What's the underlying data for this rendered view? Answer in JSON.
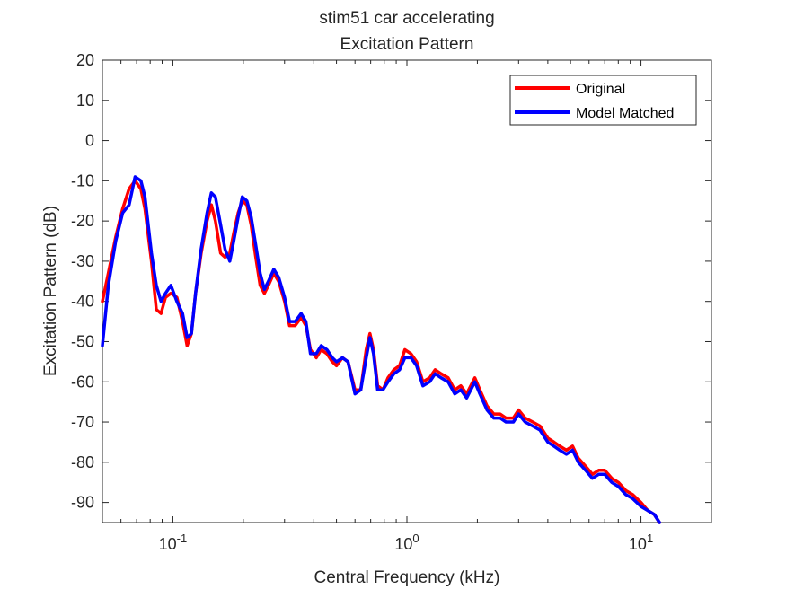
{
  "chart_data": {
    "type": "line",
    "title": "stim51 car accelerating",
    "subtitle": "Excitation Pattern",
    "xlabel": "Central Frequency (kHz)",
    "ylabel": "Excitation Pattern (dB)",
    "xscale": "log",
    "xlim": [
      0.05,
      20
    ],
    "ylim": [
      -95,
      20
    ],
    "yticks": [
      20,
      10,
      0,
      -10,
      -20,
      -30,
      -40,
      -50,
      -60,
      -70,
      -80,
      -90
    ],
    "ytick_labels": [
      "20",
      "10",
      "0",
      "-10",
      "-20",
      "-30",
      "-40",
      "-50",
      "-60",
      "-70",
      "-80",
      "-90"
    ],
    "xticks": [
      {
        "value": 0.1,
        "base": "10",
        "exp": "-1"
      },
      {
        "value": 1,
        "base": "10",
        "exp": "0"
      },
      {
        "value": 10,
        "base": "10",
        "exp": "1"
      }
    ],
    "grid": false,
    "legend_position": "top-right",
    "series": [
      {
        "name": "Original",
        "color": "#ff0000",
        "points": [
          [
            0.05,
            -40
          ],
          [
            0.053,
            -33
          ],
          [
            0.057,
            -24
          ],
          [
            0.061,
            -17
          ],
          [
            0.065,
            -12
          ],
          [
            0.069,
            -10
          ],
          [
            0.073,
            -12
          ],
          [
            0.076,
            -17
          ],
          [
            0.081,
            -30
          ],
          [
            0.085,
            -42
          ],
          [
            0.089,
            -43
          ],
          [
            0.093,
            -39
          ],
          [
            0.098,
            -38
          ],
          [
            0.104,
            -39
          ],
          [
            0.11,
            -45
          ],
          [
            0.115,
            -51
          ],
          [
            0.12,
            -48
          ],
          [
            0.125,
            -38
          ],
          [
            0.132,
            -28
          ],
          [
            0.14,
            -20
          ],
          [
            0.146,
            -16
          ],
          [
            0.152,
            -20
          ],
          [
            0.16,
            -28
          ],
          [
            0.167,
            -29
          ],
          [
            0.175,
            -28
          ],
          [
            0.182,
            -23
          ],
          [
            0.19,
            -18
          ],
          [
            0.198,
            -15
          ],
          [
            0.207,
            -16
          ],
          [
            0.216,
            -21
          ],
          [
            0.226,
            -29
          ],
          [
            0.236,
            -36
          ],
          [
            0.246,
            -38
          ],
          [
            0.256,
            -36
          ],
          [
            0.27,
            -33
          ],
          [
            0.283,
            -35
          ],
          [
            0.3,
            -40
          ],
          [
            0.315,
            -46
          ],
          [
            0.333,
            -46
          ],
          [
            0.353,
            -44
          ],
          [
            0.37,
            -46
          ],
          [
            0.387,
            -52
          ],
          [
            0.41,
            -54
          ],
          [
            0.43,
            -52
          ],
          [
            0.455,
            -53
          ],
          [
            0.48,
            -55
          ],
          [
            0.5,
            -56
          ],
          [
            0.53,
            -54
          ],
          [
            0.56,
            -55
          ],
          [
            0.6,
            -62
          ],
          [
            0.635,
            -62
          ],
          [
            0.67,
            -52
          ],
          [
            0.695,
            -48
          ],
          [
            0.72,
            -52
          ],
          [
            0.75,
            -61
          ],
          [
            0.79,
            -62
          ],
          [
            0.83,
            -59
          ],
          [
            0.88,
            -57
          ],
          [
            0.93,
            -56
          ],
          [
            0.98,
            -52
          ],
          [
            1.04,
            -53
          ],
          [
            1.1,
            -55
          ],
          [
            1.17,
            -60
          ],
          [
            1.25,
            -59
          ],
          [
            1.32,
            -57
          ],
          [
            1.4,
            -58
          ],
          [
            1.5,
            -59
          ],
          [
            1.6,
            -62
          ],
          [
            1.7,
            -61
          ],
          [
            1.8,
            -63
          ],
          [
            1.95,
            -59
          ],
          [
            2.05,
            -62
          ],
          [
            2.2,
            -66
          ],
          [
            2.35,
            -68
          ],
          [
            2.5,
            -68
          ],
          [
            2.65,
            -69
          ],
          [
            2.85,
            -69
          ],
          [
            3.0,
            -67
          ],
          [
            3.2,
            -69
          ],
          [
            3.45,
            -70
          ],
          [
            3.7,
            -71
          ],
          [
            4.0,
            -74
          ],
          [
            4.25,
            -75
          ],
          [
            4.5,
            -76
          ],
          [
            4.8,
            -77
          ],
          [
            5.1,
            -76
          ],
          [
            5.4,
            -79
          ],
          [
            5.8,
            -81
          ],
          [
            6.2,
            -83
          ],
          [
            6.6,
            -82
          ],
          [
            7.0,
            -82
          ],
          [
            7.5,
            -84
          ],
          [
            8.0,
            -85
          ],
          [
            8.6,
            -87
          ],
          [
            9.2,
            -88
          ],
          [
            10.0,
            -90
          ],
          [
            10.7,
            -92
          ],
          [
            11.4,
            -93
          ],
          [
            12.0,
            -95
          ]
        ]
      },
      {
        "name": "Model Matched",
        "color": "#0000ff",
        "points": [
          [
            0.05,
            -51
          ],
          [
            0.053,
            -36
          ],
          [
            0.057,
            -25
          ],
          [
            0.061,
            -18
          ],
          [
            0.065,
            -16
          ],
          [
            0.069,
            -9
          ],
          [
            0.073,
            -10
          ],
          [
            0.076,
            -14
          ],
          [
            0.081,
            -28
          ],
          [
            0.085,
            -36
          ],
          [
            0.089,
            -40
          ],
          [
            0.093,
            -38
          ],
          [
            0.098,
            -36
          ],
          [
            0.104,
            -40
          ],
          [
            0.11,
            -43
          ],
          [
            0.115,
            -49
          ],
          [
            0.12,
            -48
          ],
          [
            0.125,
            -38
          ],
          [
            0.132,
            -27
          ],
          [
            0.14,
            -18
          ],
          [
            0.146,
            -13
          ],
          [
            0.152,
            -14
          ],
          [
            0.16,
            -21
          ],
          [
            0.167,
            -27
          ],
          [
            0.175,
            -30
          ],
          [
            0.182,
            -25
          ],
          [
            0.19,
            -19
          ],
          [
            0.198,
            -14
          ],
          [
            0.207,
            -15
          ],
          [
            0.216,
            -19
          ],
          [
            0.226,
            -26
          ],
          [
            0.236,
            -33
          ],
          [
            0.246,
            -37
          ],
          [
            0.256,
            -35
          ],
          [
            0.27,
            -32
          ],
          [
            0.283,
            -34
          ],
          [
            0.3,
            -39
          ],
          [
            0.315,
            -45
          ],
          [
            0.333,
            -45
          ],
          [
            0.353,
            -43
          ],
          [
            0.37,
            -45
          ],
          [
            0.387,
            -53
          ],
          [
            0.41,
            -53
          ],
          [
            0.43,
            -51
          ],
          [
            0.455,
            -52
          ],
          [
            0.48,
            -54
          ],
          [
            0.5,
            -55
          ],
          [
            0.53,
            -54
          ],
          [
            0.56,
            -55
          ],
          [
            0.6,
            -63
          ],
          [
            0.635,
            -62
          ],
          [
            0.67,
            -54
          ],
          [
            0.695,
            -49
          ],
          [
            0.72,
            -53
          ],
          [
            0.75,
            -62
          ],
          [
            0.79,
            -62
          ],
          [
            0.83,
            -60
          ],
          [
            0.88,
            -58
          ],
          [
            0.93,
            -57
          ],
          [
            0.98,
            -54
          ],
          [
            1.04,
            -54
          ],
          [
            1.1,
            -56
          ],
          [
            1.17,
            -61
          ],
          [
            1.25,
            -60
          ],
          [
            1.32,
            -58
          ],
          [
            1.4,
            -59
          ],
          [
            1.5,
            -60
          ],
          [
            1.6,
            -63
          ],
          [
            1.7,
            -62
          ],
          [
            1.8,
            -64
          ],
          [
            1.95,
            -60
          ],
          [
            2.05,
            -63
          ],
          [
            2.2,
            -67
          ],
          [
            2.35,
            -69
          ],
          [
            2.5,
            -69
          ],
          [
            2.65,
            -70
          ],
          [
            2.85,
            -70
          ],
          [
            3.0,
            -68
          ],
          [
            3.2,
            -70
          ],
          [
            3.45,
            -71
          ],
          [
            3.7,
            -72
          ],
          [
            4.0,
            -75
          ],
          [
            4.25,
            -76
          ],
          [
            4.5,
            -77
          ],
          [
            4.8,
            -78
          ],
          [
            5.1,
            -77
          ],
          [
            5.4,
            -80
          ],
          [
            5.8,
            -82
          ],
          [
            6.2,
            -84
          ],
          [
            6.6,
            -83
          ],
          [
            7.0,
            -83
          ],
          [
            7.5,
            -85
          ],
          [
            8.0,
            -86
          ],
          [
            8.6,
            -88
          ],
          [
            9.2,
            -89
          ],
          [
            10.0,
            -91
          ],
          [
            10.7,
            -92
          ],
          [
            11.4,
            -93
          ],
          [
            12.0,
            -95
          ]
        ]
      }
    ]
  }
}
